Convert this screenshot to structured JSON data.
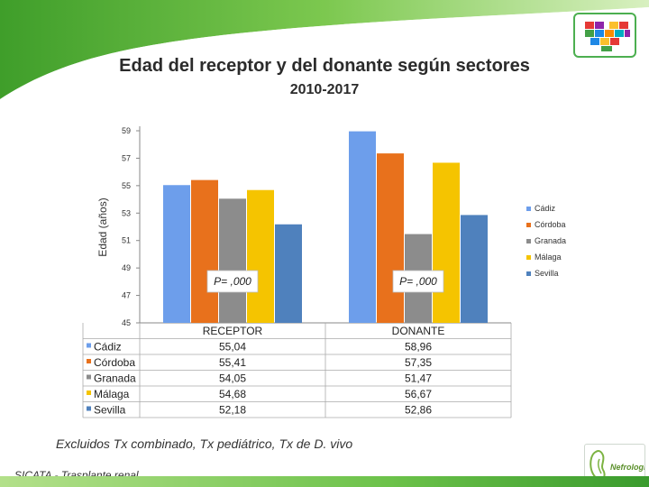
{
  "title": "Edad del receptor y del donante según sectores",
  "subtitle": "2010-2017",
  "note": "Excluidos Tx combinado, Tx  pediátrico, Tx de D. vivo",
  "source": "SICATA - Trasplante renal",
  "logo_bottom": {
    "text": "Nefrología"
  },
  "colors": {
    "Cádiz": "#6d9eeb",
    "Córdoba": "#e8711c",
    "Granada": "#8c8c8c",
    "Málaga": "#f5c400",
    "Sevilla": "#4f81bd"
  },
  "chart_data": {
    "type": "bar",
    "ylabel": "Edad (años)",
    "ylim": [
      45,
      59
    ],
    "yticks": [
      45,
      47,
      49,
      51,
      53,
      55,
      57,
      59
    ],
    "categories": [
      "RECEPTOR",
      "DONANTE"
    ],
    "series": [
      {
        "name": "Cádiz",
        "values": [
          55.04,
          58.96
        ],
        "labels": [
          "55,04",
          "58,96"
        ]
      },
      {
        "name": "Córdoba",
        "values": [
          55.41,
          57.35
        ],
        "labels": [
          "55,41",
          "57,35"
        ]
      },
      {
        "name": "Granada",
        "values": [
          54.05,
          51.47
        ],
        "labels": [
          "54,05",
          "51,47"
        ]
      },
      {
        "name": "Málaga",
        "values": [
          54.68,
          56.67
        ],
        "labels": [
          "54,68",
          "56,67"
        ]
      },
      {
        "name": "Sevilla",
        "values": [
          52.18,
          52.86
        ],
        "labels": [
          "52,18",
          "52,86"
        ]
      }
    ],
    "annotations": [
      "P= ,000",
      "P= ,000"
    ],
    "legend_position": "right",
    "data_table": true,
    "grid": false
  }
}
